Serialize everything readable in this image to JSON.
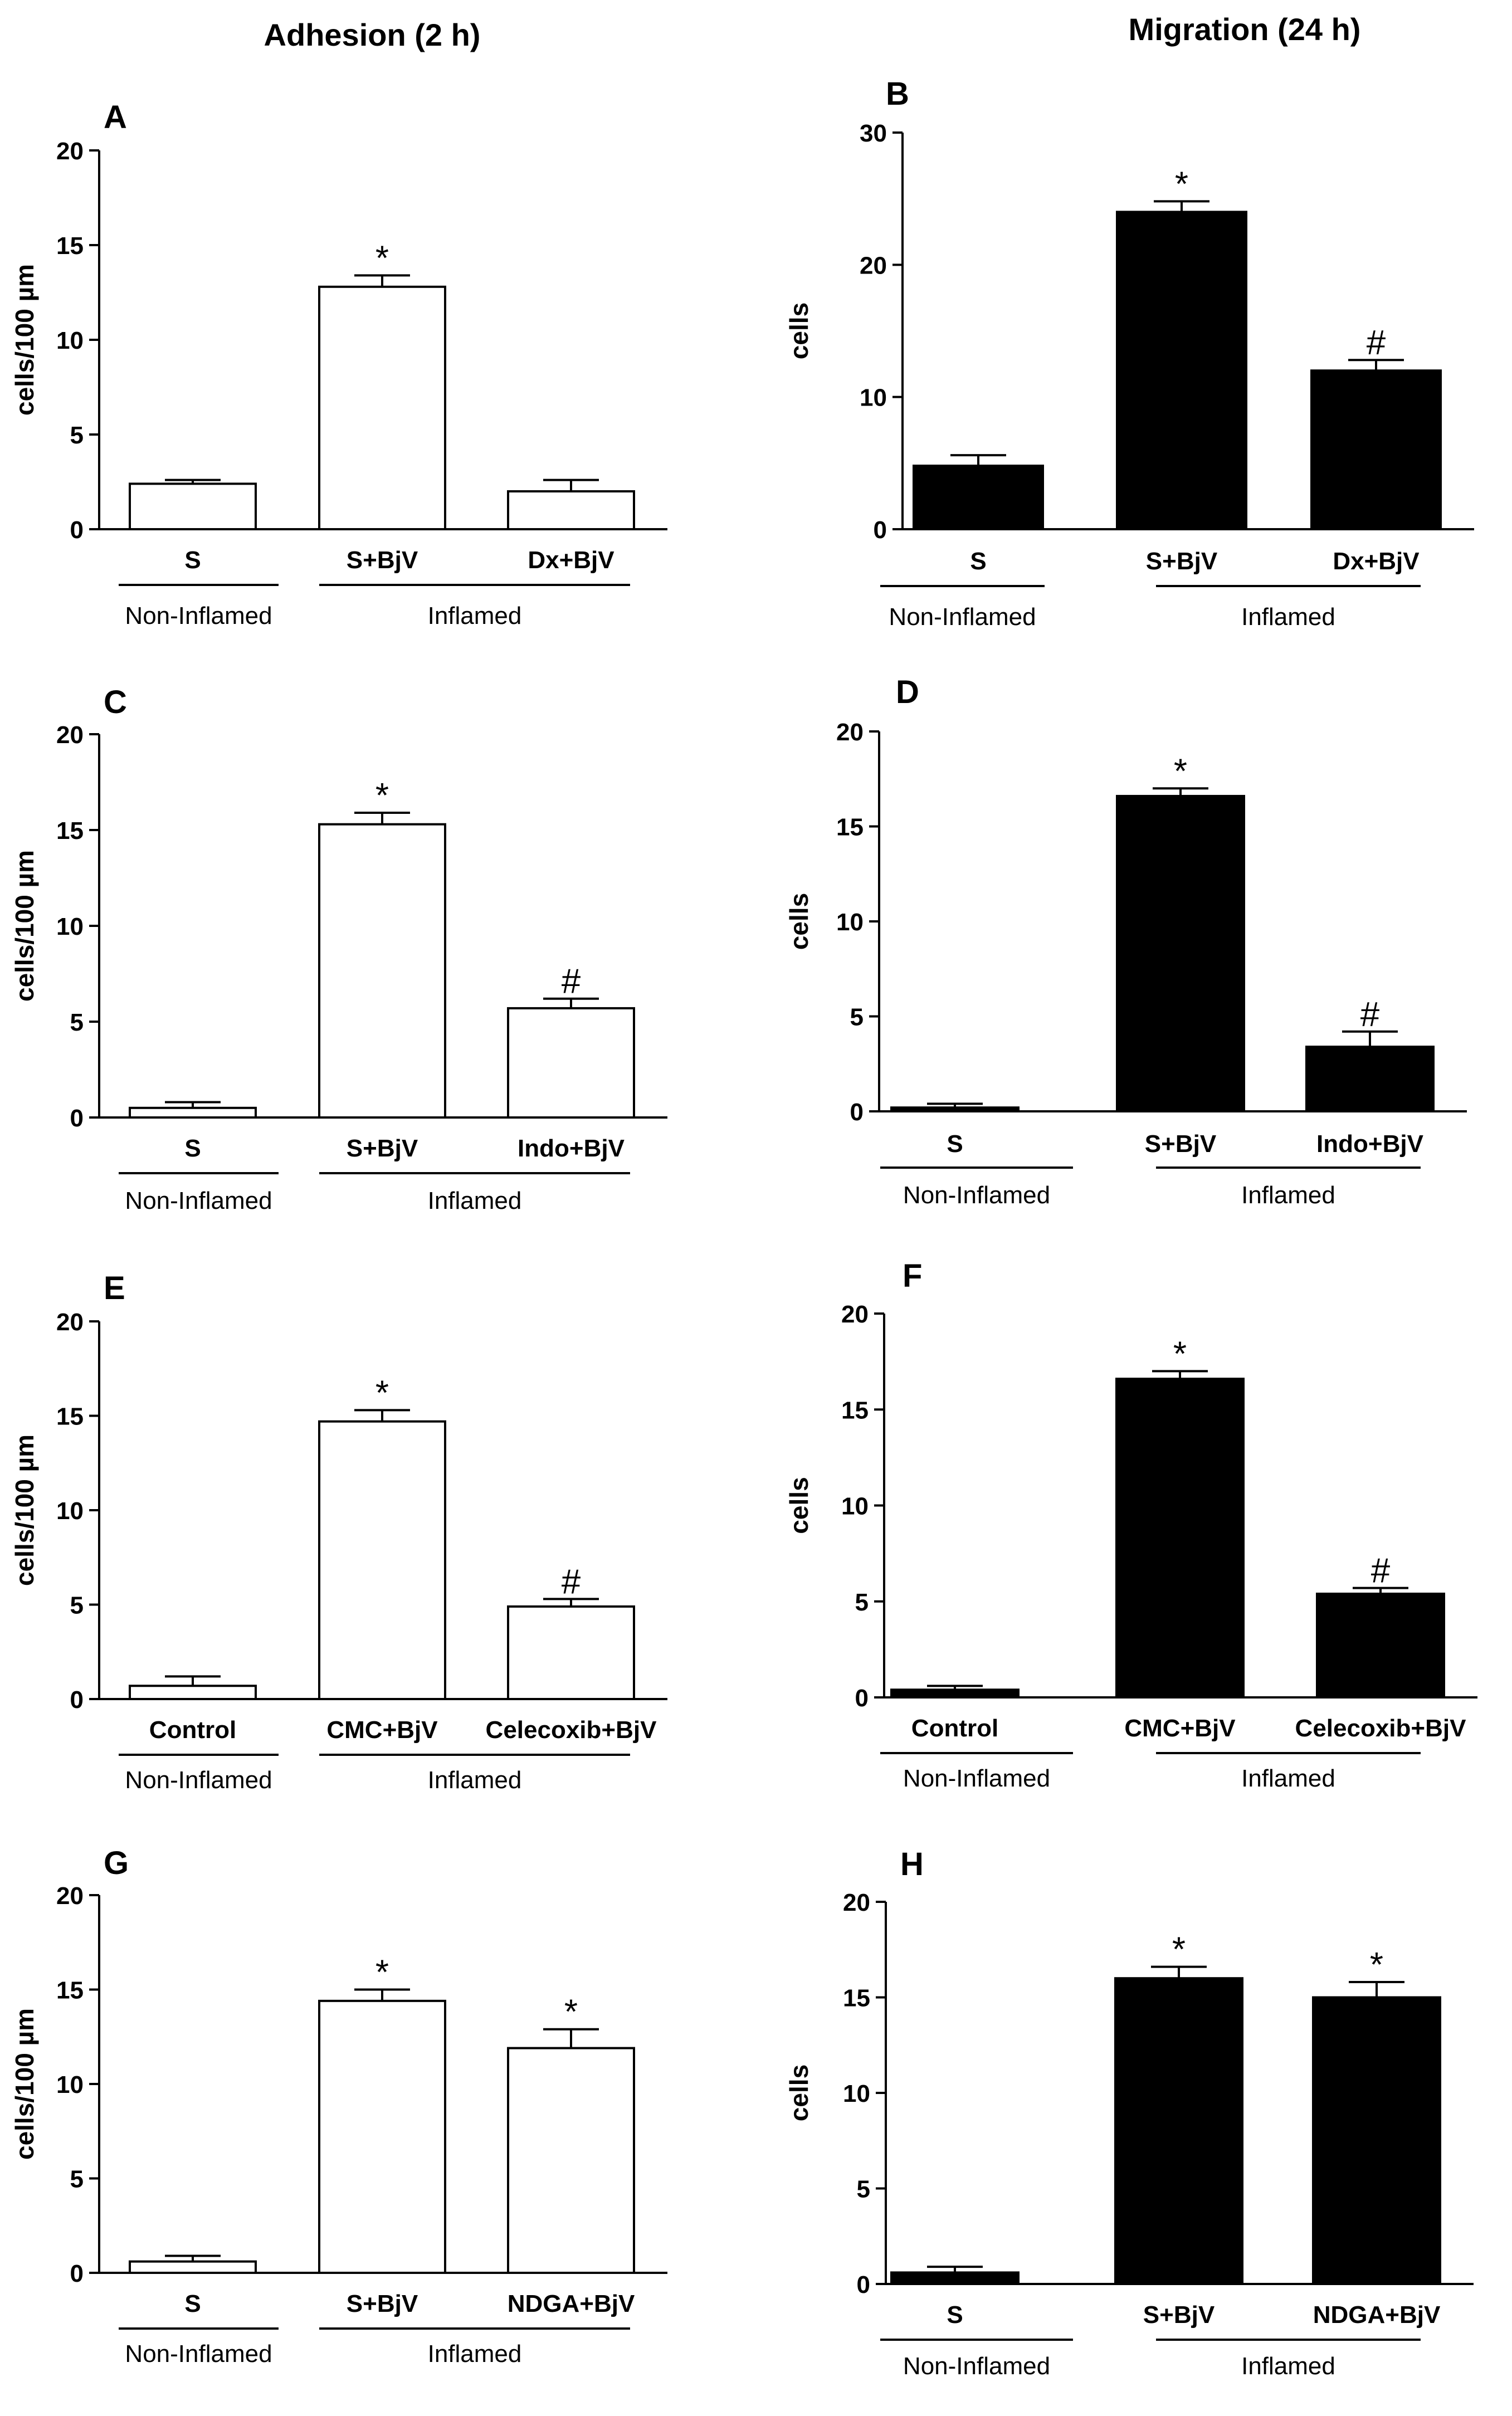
{
  "column_titles": [
    "Adhesion (2 h)",
    "Migration (24 h)"
  ],
  "colors": {
    "open_bar_fill": "#ffffff",
    "solid_bar_fill": "#000000",
    "stroke": "#000000"
  },
  "chart_data": [
    {
      "panel": "A",
      "type": "bar",
      "ylabel": "cells/100 µm",
      "ylim": [
        0,
        20
      ],
      "yticks": [
        0,
        5,
        10,
        15,
        20
      ],
      "categories": [
        "S",
        "S+BjV",
        "Dx+BjV"
      ],
      "values": [
        2.4,
        12.8,
        2.0
      ],
      "errors": [
        0.2,
        0.6,
        0.6
      ],
      "annotations": [
        "",
        "*",
        ""
      ],
      "groups": [
        "Non-Inflamed",
        "Inflamed"
      ],
      "bar_style": "open"
    },
    {
      "panel": "B",
      "type": "bar",
      "ylabel": "cells",
      "ylim": [
        0,
        30
      ],
      "yticks": [
        0,
        10,
        20,
        30
      ],
      "categories": [
        "S",
        "S+BjV",
        "Dx+BjV"
      ],
      "values": [
        4.8,
        24.0,
        12.0
      ],
      "errors": [
        0.8,
        0.8,
        0.8
      ],
      "annotations": [
        "",
        "*",
        "#"
      ],
      "groups": [
        "Non-Inflamed",
        "Inflamed"
      ],
      "bar_style": "solid"
    },
    {
      "panel": "C",
      "type": "bar",
      "ylabel": "cells/100 µm",
      "ylim": [
        0,
        20
      ],
      "yticks": [
        0,
        5,
        10,
        15,
        20
      ],
      "categories": [
        "S",
        "S+BjV",
        "Indo+BjV"
      ],
      "values": [
        0.5,
        15.3,
        5.7
      ],
      "errors": [
        0.3,
        0.6,
        0.5
      ],
      "annotations": [
        "",
        "*",
        "#"
      ],
      "groups": [
        "Non-Inflamed",
        "Inflamed"
      ],
      "bar_style": "open"
    },
    {
      "panel": "D",
      "type": "bar",
      "ylabel": "cells",
      "ylim": [
        0,
        20
      ],
      "yticks": [
        0,
        5,
        10,
        15,
        20
      ],
      "categories": [
        "S",
        "S+BjV",
        "Indo+BjV"
      ],
      "values": [
        0.2,
        16.6,
        3.4
      ],
      "errors": [
        0.2,
        0.4,
        0.8
      ],
      "annotations": [
        "",
        "*",
        "#"
      ],
      "groups": [
        "Non-Inflamed",
        "Inflamed"
      ],
      "bar_style": "solid"
    },
    {
      "panel": "E",
      "type": "bar",
      "ylabel": "cells/100 µm",
      "ylim": [
        0,
        20
      ],
      "yticks": [
        0,
        5,
        10,
        15,
        20
      ],
      "categories": [
        "Control",
        "CMC+BjV",
        "Celecoxib+BjV"
      ],
      "values": [
        0.7,
        14.7,
        4.9
      ],
      "errors": [
        0.5,
        0.6,
        0.4
      ],
      "annotations": [
        "",
        "*",
        "#"
      ],
      "groups": [
        "Non-Inflamed",
        "Inflamed"
      ],
      "bar_style": "open"
    },
    {
      "panel": "F",
      "type": "bar",
      "ylabel": "cells",
      "ylim": [
        0,
        20
      ],
      "yticks": [
        0,
        5,
        10,
        15,
        20
      ],
      "categories": [
        "Control",
        "CMC+BjV",
        "Celecoxib+BjV"
      ],
      "values": [
        0.4,
        16.6,
        5.4
      ],
      "errors": [
        0.2,
        0.4,
        0.3
      ],
      "annotations": [
        "",
        "*",
        "#"
      ],
      "groups": [
        "Non-Inflamed",
        "Inflamed"
      ],
      "bar_style": "solid"
    },
    {
      "panel": "G",
      "type": "bar",
      "ylabel": "cells/100 µm",
      "ylim": [
        0,
        20
      ],
      "yticks": [
        0,
        5,
        10,
        15,
        20
      ],
      "categories": [
        "S",
        "S+BjV",
        "NDGA+BjV"
      ],
      "values": [
        0.6,
        14.4,
        11.9
      ],
      "errors": [
        0.3,
        0.6,
        1.0
      ],
      "annotations": [
        "",
        "*",
        "*"
      ],
      "groups": [
        "Non-Inflamed",
        "Inflamed"
      ],
      "bar_style": "open"
    },
    {
      "panel": "H",
      "type": "bar",
      "ylabel": "cells",
      "ylim": [
        0,
        20
      ],
      "yticks": [
        0,
        5,
        10,
        15,
        20
      ],
      "categories": [
        "S",
        "S+BjV",
        "NDGA+BjV"
      ],
      "values": [
        0.6,
        16.0,
        15.0
      ],
      "errors": [
        0.3,
        0.6,
        0.8
      ],
      "annotations": [
        "",
        "*",
        "*"
      ],
      "groups": [
        "Non-Inflamed",
        "Inflamed"
      ],
      "bar_style": "solid"
    }
  ]
}
